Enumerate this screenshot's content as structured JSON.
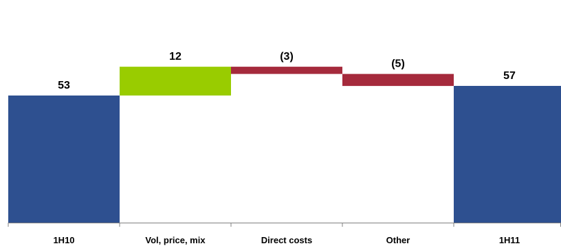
{
  "chart_data": {
    "type": "bar",
    "subtype": "waterfall",
    "categories": [
      "1H10",
      "Vol, price, mix",
      "Direct costs",
      "Other",
      "1H11"
    ],
    "values": [
      53,
      12,
      -3,
      -5,
      57
    ],
    "bar_kinds": [
      "total",
      "delta",
      "delta",
      "delta",
      "total"
    ],
    "data_labels": [
      "53",
      "12",
      "(3)",
      "(5)",
      "57"
    ],
    "title": "",
    "xlabel": "",
    "ylabel": "",
    "ylim": [
      0,
      70
    ],
    "grid": false,
    "legend": "none",
    "colors": {
      "total": "#2e5090",
      "increase": "#99cc00",
      "decrease": "#a52a3c",
      "axis": "#808080",
      "text": "#000000"
    }
  }
}
